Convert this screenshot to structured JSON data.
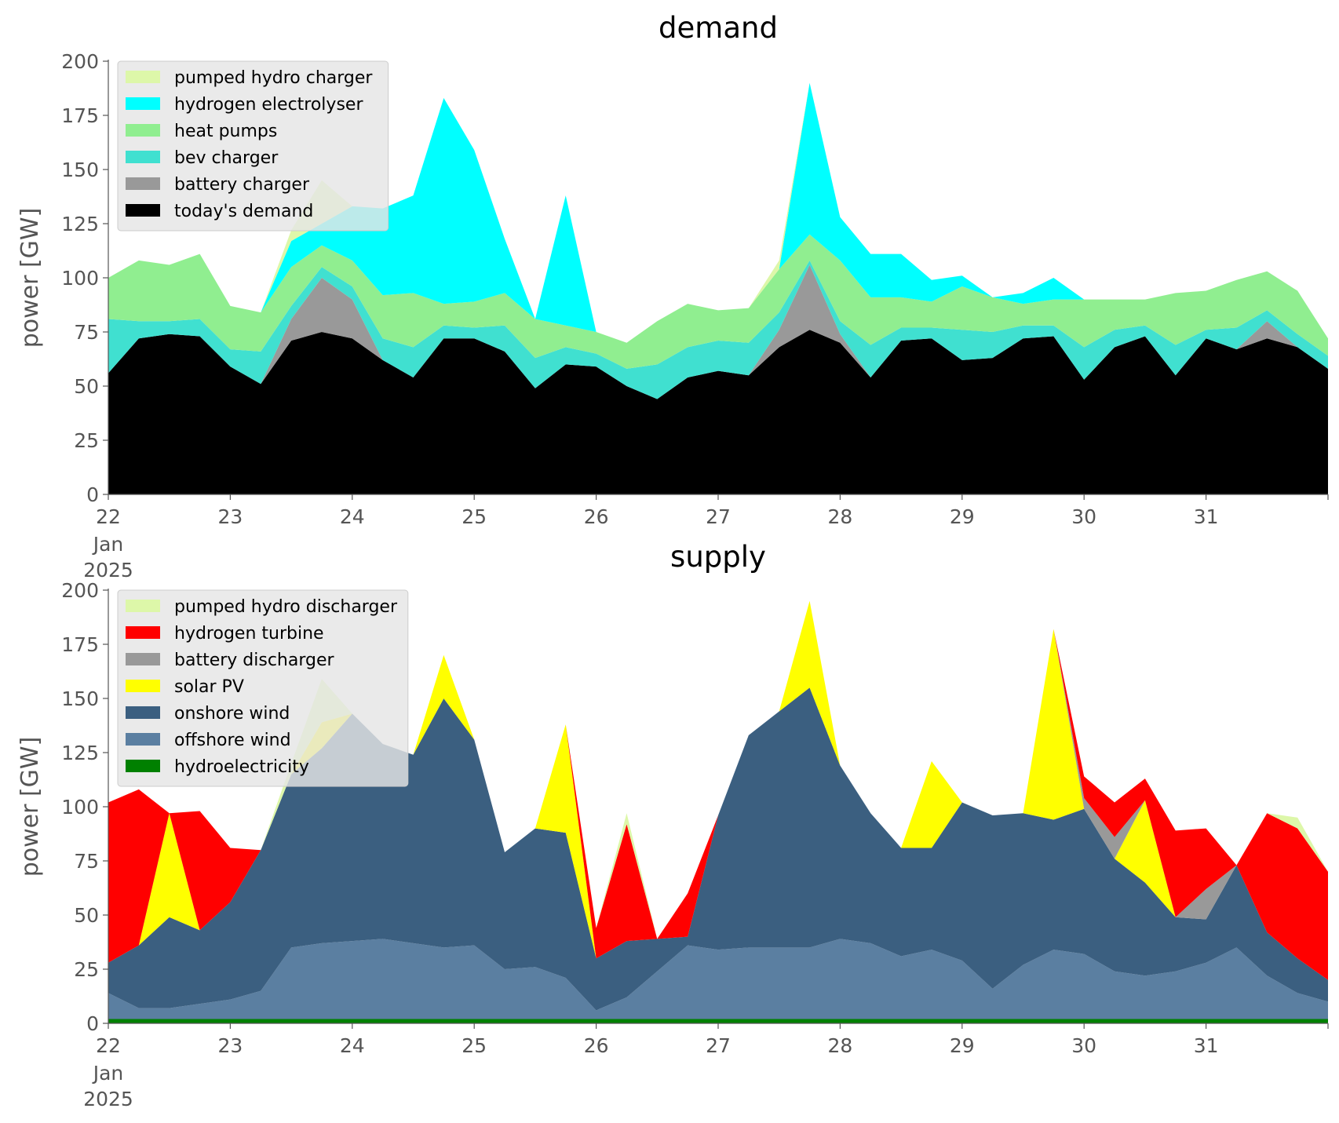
{
  "chart_data": [
    {
      "type": "area",
      "stacked": true,
      "title": "demand",
      "ylabel": "power [GW]",
      "xlabel": "",
      "ylim": [
        0,
        200
      ],
      "yticks": [
        0,
        25,
        50,
        75,
        100,
        125,
        150,
        175,
        200
      ],
      "xlim": [
        0,
        240
      ],
      "xticks": [
        {
          "x": 0,
          "label": "22",
          "sub": [
            "Jan",
            "2025"
          ]
        },
        {
          "x": 24,
          "label": "23"
        },
        {
          "x": 48,
          "label": "24"
        },
        {
          "x": 72,
          "label": "25"
        },
        {
          "x": 96,
          "label": "26"
        },
        {
          "x": 120,
          "label": "27"
        },
        {
          "x": 144,
          "label": "28"
        },
        {
          "x": 168,
          "label": "29"
        },
        {
          "x": 192,
          "label": "30"
        },
        {
          "x": 216,
          "label": "31"
        }
      ],
      "x_unit": "hours after 22 Jan 2025 00:00",
      "grid": false,
      "legend_position": "upper-left",
      "x": [
        0,
        6,
        12,
        18,
        24,
        30,
        36,
        42,
        48,
        54,
        60,
        66,
        72,
        78,
        84,
        90,
        96,
        102,
        108,
        114,
        120,
        126,
        132,
        138,
        144,
        150,
        156,
        162,
        168,
        174,
        180,
        186,
        192,
        198,
        204,
        210,
        216,
        222,
        228,
        234,
        240
      ],
      "series": [
        {
          "name": "today's demand",
          "color": "#000000",
          "values": [
            56,
            72,
            74,
            73,
            59,
            51,
            71,
            75,
            72,
            62,
            54,
            72,
            72,
            66,
            49,
            60,
            59,
            50,
            44,
            54,
            57,
            55,
            68,
            76,
            70,
            54,
            71,
            72,
            62,
            63,
            72,
            73,
            53,
            68,
            73,
            55,
            72,
            67,
            72,
            68,
            58
          ]
        },
        {
          "name": "battery charger",
          "color": "#999999",
          "values": [
            0,
            0,
            0,
            0,
            0,
            0,
            10,
            25,
            18,
            0,
            0,
            0,
            0,
            0,
            0,
            0,
            0,
            0,
            0,
            0,
            0,
            0,
            8,
            30,
            4,
            0,
            0,
            0,
            0,
            0,
            0,
            0,
            0,
            0,
            0,
            0,
            0,
            0,
            8,
            0,
            0
          ]
        },
        {
          "name": "bev charger",
          "color": "#40e0d0",
          "values": [
            25,
            8,
            6,
            8,
            8,
            15,
            6,
            5,
            6,
            10,
            14,
            6,
            5,
            12,
            14,
            8,
            6,
            8,
            16,
            14,
            14,
            15,
            8,
            2,
            6,
            15,
            6,
            5,
            14,
            12,
            6,
            5,
            15,
            8,
            5,
            14,
            4,
            10,
            5,
            6,
            6
          ]
        },
        {
          "name": "heat pumps",
          "color": "#90ee90",
          "values": [
            19,
            28,
            26,
            30,
            20,
            18,
            18,
            10,
            12,
            20,
            25,
            10,
            12,
            15,
            18,
            10,
            10,
            12,
            20,
            20,
            14,
            16,
            20,
            12,
            28,
            22,
            14,
            12,
            20,
            16,
            10,
            12,
            22,
            14,
            12,
            24,
            18,
            22,
            18,
            20,
            8
          ]
        },
        {
          "name": "hydrogen electrolyser",
          "color": "#00ffff",
          "values": [
            0,
            0,
            0,
            0,
            0,
            0,
            12,
            10,
            25,
            40,
            45,
            95,
            70,
            25,
            0,
            60,
            0,
            0,
            0,
            0,
            0,
            0,
            0,
            70,
            20,
            20,
            20,
            10,
            5,
            0,
            5,
            10,
            0,
            0,
            0,
            0,
            0,
            0,
            0,
            0,
            0
          ]
        },
        {
          "name": "pumped hydro charger",
          "color": "#ddf7a9",
          "values": [
            0,
            0,
            0,
            0,
            0,
            0,
            5,
            20,
            0,
            0,
            0,
            0,
            0,
            0,
            0,
            0,
            0,
            0,
            0,
            0,
            0,
            0,
            4,
            0,
            0,
            0,
            0,
            0,
            0,
            0,
            0,
            0,
            0,
            0,
            0,
            0,
            0,
            0,
            0,
            0,
            0
          ]
        }
      ]
    },
    {
      "type": "area",
      "stacked": true,
      "title": "supply",
      "ylabel": "power [GW]",
      "xlabel": "",
      "ylim": [
        0,
        200
      ],
      "yticks": [
        0,
        25,
        50,
        75,
        100,
        125,
        150,
        175,
        200
      ],
      "xlim": [
        0,
        240
      ],
      "xticks": [
        {
          "x": 0,
          "label": "22",
          "sub": [
            "Jan",
            "2025"
          ]
        },
        {
          "x": 24,
          "label": "23"
        },
        {
          "x": 48,
          "label": "24"
        },
        {
          "x": 72,
          "label": "25"
        },
        {
          "x": 96,
          "label": "26"
        },
        {
          "x": 120,
          "label": "27"
        },
        {
          "x": 144,
          "label": "28"
        },
        {
          "x": 168,
          "label": "29"
        },
        {
          "x": 192,
          "label": "30"
        },
        {
          "x": 216,
          "label": "31"
        }
      ],
      "x_unit": "hours after 22 Jan 2025 00:00",
      "grid": false,
      "legend_position": "upper-left",
      "x": [
        0,
        6,
        12,
        18,
        24,
        30,
        36,
        42,
        48,
        54,
        60,
        66,
        72,
        78,
        84,
        90,
        96,
        102,
        108,
        114,
        120,
        126,
        132,
        138,
        144,
        150,
        156,
        162,
        168,
        174,
        180,
        186,
        192,
        198,
        204,
        210,
        216,
        222,
        228,
        234,
        240
      ],
      "series": [
        {
          "name": "hydroelectricity",
          "color": "#008000",
          "values": [
            2,
            2,
            2,
            2,
            2,
            2,
            2,
            2,
            2,
            2,
            2,
            2,
            2,
            2,
            2,
            2,
            2,
            2,
            2,
            2,
            2,
            2,
            2,
            2,
            2,
            2,
            2,
            2,
            2,
            2,
            2,
            2,
            2,
            2,
            2,
            2,
            2,
            2,
            2,
            2,
            2
          ]
        },
        {
          "name": "offshore wind",
          "color": "#5b7fa1",
          "values": [
            12,
            5,
            5,
            7,
            9,
            13,
            33,
            35,
            36,
            37,
            35,
            33,
            34,
            23,
            24,
            19,
            4,
            10,
            22,
            34,
            32,
            33,
            33,
            33,
            37,
            35,
            29,
            32,
            27,
            14,
            25,
            32,
            30,
            22,
            20,
            22,
            26,
            33,
            20,
            12,
            8
          ]
        },
        {
          "name": "onshore wind",
          "color": "#3b5f80",
          "values": [
            14,
            29,
            42,
            34,
            45,
            65,
            80,
            90,
            105,
            90,
            87,
            115,
            95,
            54,
            64,
            67,
            24,
            26,
            15,
            4,
            62,
            98,
            109,
            120,
            80,
            60,
            50,
            47,
            73,
            80,
            70,
            60,
            67,
            52,
            43,
            25,
            20,
            38,
            20,
            16,
            10
          ]
        },
        {
          "name": "solar PV",
          "color": "#ffff00",
          "values": [
            0,
            0,
            48,
            0,
            0,
            0,
            0,
            12,
            0,
            0,
            0,
            20,
            0,
            0,
            0,
            50,
            0,
            0,
            0,
            0,
            0,
            0,
            0,
            40,
            0,
            0,
            0,
            40,
            0,
            0,
            0,
            88,
            0,
            0,
            38,
            0,
            0,
            0,
            0,
            0,
            0
          ]
        },
        {
          "name": "battery discharger",
          "color": "#999999",
          "values": [
            0,
            0,
            0,
            0,
            0,
            0,
            0,
            0,
            0,
            0,
            0,
            0,
            0,
            0,
            0,
            0,
            0,
            0,
            0,
            0,
            0,
            0,
            0,
            0,
            0,
            0,
            0,
            0,
            0,
            0,
            0,
            0,
            5,
            10,
            0,
            0,
            14,
            0,
            0,
            0,
            0
          ]
        },
        {
          "name": "hydrogen turbine",
          "color": "#ff0000",
          "values": [
            74,
            72,
            0,
            55,
            25,
            0,
            0,
            0,
            0,
            0,
            0,
            0,
            0,
            0,
            0,
            0,
            14,
            54,
            0,
            20,
            0,
            0,
            0,
            0,
            0,
            0,
            0,
            0,
            0,
            0,
            0,
            0,
            10,
            16,
            10,
            40,
            28,
            0,
            55,
            60,
            50
          ]
        },
        {
          "name": "pumped hydro discharger",
          "color": "#ddf7a9",
          "values": [
            0,
            0,
            0,
            0,
            0,
            0,
            5,
            20,
            0,
            0,
            0,
            0,
            0,
            0,
            0,
            0,
            0,
            5,
            0,
            0,
            0,
            0,
            0,
            0,
            0,
            0,
            0,
            0,
            0,
            0,
            0,
            0,
            0,
            0,
            0,
            0,
            0,
            0,
            0,
            5,
            0
          ]
        }
      ]
    }
  ]
}
